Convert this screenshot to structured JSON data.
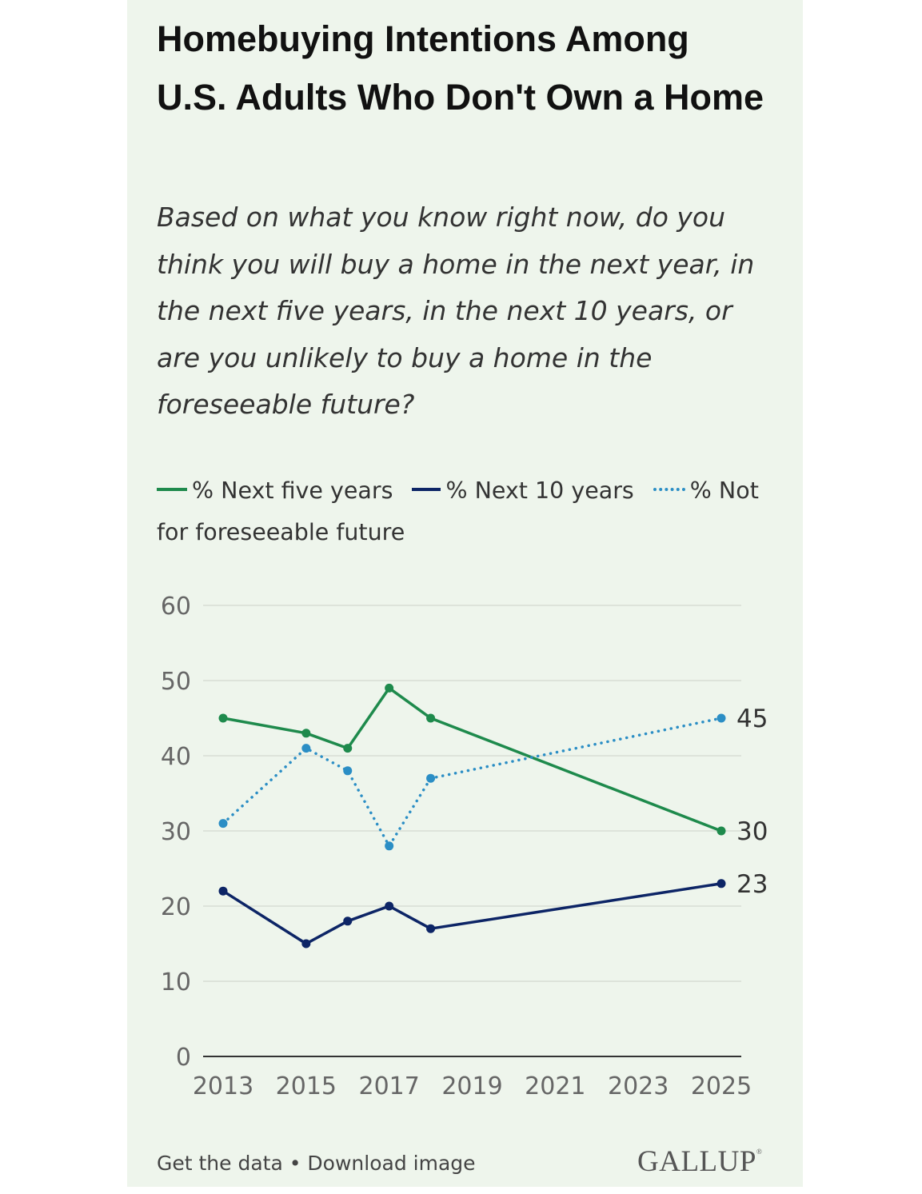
{
  "title": "Homebuying Intentions Among U.S. Adults Who Don't Own a Home",
  "subtitle": "Based on what you know right now, do you think you will buy a home in the next year, in the next five years, in the next 10 years, or are you unlikely to buy a home in the foreseeable future?",
  "footer": {
    "text": "Get the data • Download image",
    "brand": "GALLUP",
    "brand_mark": "®"
  },
  "chart_data": {
    "type": "line",
    "title": "Homebuying Intentions Among U.S. Adults Who Don't Own a Home",
    "xlabel": "",
    "ylabel": "",
    "ylim": [
      0,
      60
    ],
    "xlim": [
      2013,
      2025
    ],
    "yticks": [
      0,
      10,
      20,
      30,
      40,
      50,
      60
    ],
    "xticks": [
      2013,
      2015,
      2017,
      2019,
      2021,
      2023,
      2025
    ],
    "grid": true,
    "legend_position": "top",
    "series": [
      {
        "name": "% Next five years",
        "color": "#1e8a4c",
        "style": "solid",
        "x": [
          2013,
          2015,
          2016,
          2017,
          2018,
          2025
        ],
        "values": [
          45,
          43,
          41,
          49,
          45,
          30
        ],
        "end_label": "30"
      },
      {
        "name": "% Next 10 years",
        "color": "#0d2566",
        "style": "solid",
        "x": [
          2013,
          2015,
          2016,
          2017,
          2018,
          2025
        ],
        "values": [
          22,
          15,
          18,
          20,
          17,
          23
        ],
        "end_label": "23"
      },
      {
        "name": "% Not for foreseeable future",
        "color": "#2b8ec5",
        "style": "dotted",
        "x": [
          2013,
          2015,
          2016,
          2017,
          2018,
          2025
        ],
        "values": [
          31,
          41,
          38,
          28,
          37,
          45
        ],
        "end_label": "45"
      }
    ]
  }
}
